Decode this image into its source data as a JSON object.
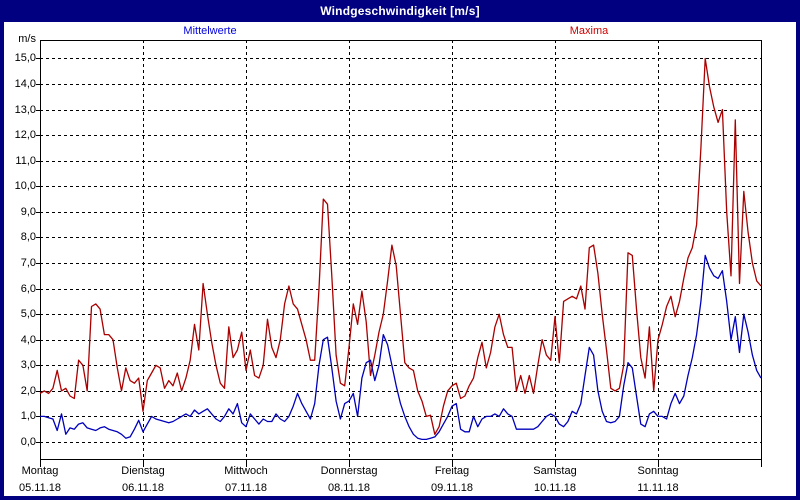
{
  "window": {
    "title": "Windgeschwindigkeit [m/s]"
  },
  "legend": {
    "mean_label": "Mittelwerte",
    "max_label": "Maxima",
    "mean_color": "#0000dd",
    "max_color": "#cc0000"
  },
  "axis": {
    "unit_label": "m/s",
    "y_tick_labels": [
      "0,0",
      "1,0",
      "2,0",
      "3,0",
      "4,0",
      "5,0",
      "6,0",
      "7,0",
      "8,0",
      "9,0",
      "10,0",
      "11,0",
      "12,0",
      "13,0",
      "14,0",
      "15,0"
    ]
  },
  "chart_data": {
    "type": "line",
    "title": "Windgeschwindigkeit [m/s]",
    "ylabel": "m/s",
    "ylim": [
      0.0,
      15.0
    ],
    "y_step": 1.0,
    "grid": "dashed horizontal per 1.0 m/s, dashed vertical per day",
    "legend_position": "top",
    "x_resolution": "hourly, 7 days, 169 points per series",
    "days": [
      {
        "name": "Montag",
        "date": "05.11.18"
      },
      {
        "name": "Dienstag",
        "date": "06.11.18"
      },
      {
        "name": "Mittwoch",
        "date": "07.11.18"
      },
      {
        "name": "Donnerstag",
        "date": "08.11.18"
      },
      {
        "name": "Freitag",
        "date": "09.11.18"
      },
      {
        "name": "Samstag",
        "date": "10.11.18"
      },
      {
        "name": "Sonntag",
        "date": "11.11.18"
      }
    ],
    "series": [
      {
        "name": "Maxima",
        "color": "#aa0000",
        "values": [
          1.9,
          2.0,
          1.9,
          2.1,
          2.8,
          2.0,
          2.1,
          1.8,
          1.7,
          3.2,
          3.0,
          2.0,
          5.3,
          5.4,
          5.2,
          4.2,
          4.2,
          4.0,
          2.9,
          2.0,
          2.9,
          2.4,
          2.3,
          2.5,
          1.2,
          2.4,
          2.7,
          3.0,
          2.9,
          2.1,
          2.4,
          2.2,
          2.7,
          2.0,
          2.5,
          3.2,
          4.6,
          3.6,
          6.2,
          5.0,
          3.9,
          3.0,
          2.3,
          2.1,
          4.5,
          3.3,
          3.6,
          4.3,
          2.8,
          3.6,
          2.6,
          2.5,
          3.0,
          4.8,
          3.7,
          3.3,
          4.0,
          5.4,
          6.1,
          5.4,
          5.2,
          4.6,
          4.0,
          3.2,
          3.2,
          6.0,
          9.5,
          9.3,
          6.5,
          3.4,
          2.3,
          2.2,
          3.7,
          5.4,
          4.6,
          5.9,
          4.7,
          2.6,
          3.4,
          4.3,
          5.0,
          6.3,
          7.7,
          6.9,
          5.0,
          3.1,
          2.9,
          2.8,
          2.0,
          1.6,
          1.0,
          1.05,
          0.3,
          0.6,
          1.4,
          2.0,
          2.2,
          2.3,
          1.7,
          1.8,
          2.2,
          2.5,
          3.3,
          3.9,
          2.9,
          3.5,
          4.5,
          5.0,
          4.2,
          3.7,
          3.7,
          2.0,
          2.6,
          1.9,
          2.6,
          1.9,
          3.0,
          4.0,
          3.4,
          3.2,
          4.9,
          3.1,
          5.5,
          5.6,
          5.7,
          5.6,
          6.1,
          5.2,
          7.6,
          7.7,
          6.6,
          5.0,
          3.6,
          2.1,
          2.0,
          2.1,
          3.0,
          7.4,
          7.3,
          5.2,
          3.3,
          2.5,
          4.5,
          2.0,
          4.0,
          4.6,
          5.3,
          5.7,
          4.9,
          5.5,
          6.4,
          7.2,
          7.6,
          8.5,
          11.5,
          15.0,
          13.9,
          13.1,
          12.5,
          13.0,
          9.0,
          6.5,
          12.6,
          6.2,
          9.8,
          8.2,
          7.0,
          6.3,
          6.1
        ]
      },
      {
        "name": "Mittelwerte",
        "color": "#0000bb",
        "values": [
          1.0,
          1.0,
          0.95,
          0.9,
          0.45,
          1.1,
          0.3,
          0.55,
          0.5,
          0.7,
          0.75,
          0.55,
          0.5,
          0.45,
          0.55,
          0.6,
          0.5,
          0.45,
          0.4,
          0.3,
          0.15,
          0.2,
          0.5,
          0.85,
          0.4,
          0.7,
          1.0,
          0.9,
          0.85,
          0.8,
          0.75,
          0.8,
          0.9,
          1.0,
          1.1,
          1.0,
          1.25,
          1.1,
          1.2,
          1.3,
          1.1,
          0.9,
          0.8,
          1.0,
          1.3,
          1.1,
          1.5,
          0.75,
          0.6,
          1.1,
          0.9,
          0.7,
          0.9,
          0.8,
          0.8,
          1.1,
          0.9,
          0.8,
          1.0,
          1.4,
          1.9,
          1.5,
          1.2,
          0.9,
          1.5,
          3.0,
          4.0,
          4.1,
          2.9,
          1.6,
          0.9,
          1.5,
          1.6,
          1.9,
          1.0,
          2.5,
          3.1,
          3.2,
          2.4,
          3.0,
          4.2,
          3.8,
          3.0,
          2.2,
          1.5,
          1.0,
          0.6,
          0.3,
          0.15,
          0.1,
          0.1,
          0.15,
          0.2,
          0.4,
          0.7,
          1.0,
          1.4,
          1.5,
          0.5,
          0.4,
          0.4,
          1.0,
          0.6,
          0.9,
          1.0,
          1.0,
          1.1,
          1.0,
          1.3,
          1.1,
          1.0,
          0.5,
          0.5,
          0.5,
          0.5,
          0.5,
          0.6,
          0.8,
          1.0,
          1.1,
          1.0,
          0.7,
          0.6,
          0.8,
          1.2,
          1.1,
          1.5,
          2.6,
          3.7,
          3.4,
          2.0,
          1.2,
          0.8,
          0.75,
          0.8,
          1.0,
          2.2,
          3.1,
          2.9,
          1.8,
          0.7,
          0.6,
          1.1,
          1.2,
          1.0,
          1.0,
          0.9,
          1.5,
          1.9,
          1.5,
          1.8,
          2.6,
          3.3,
          4.2,
          5.5,
          7.3,
          6.8,
          6.5,
          6.4,
          6.7,
          5.5,
          4.0,
          4.9,
          3.5,
          5.0,
          4.3,
          3.4,
          2.8,
          2.5
        ]
      }
    ]
  }
}
